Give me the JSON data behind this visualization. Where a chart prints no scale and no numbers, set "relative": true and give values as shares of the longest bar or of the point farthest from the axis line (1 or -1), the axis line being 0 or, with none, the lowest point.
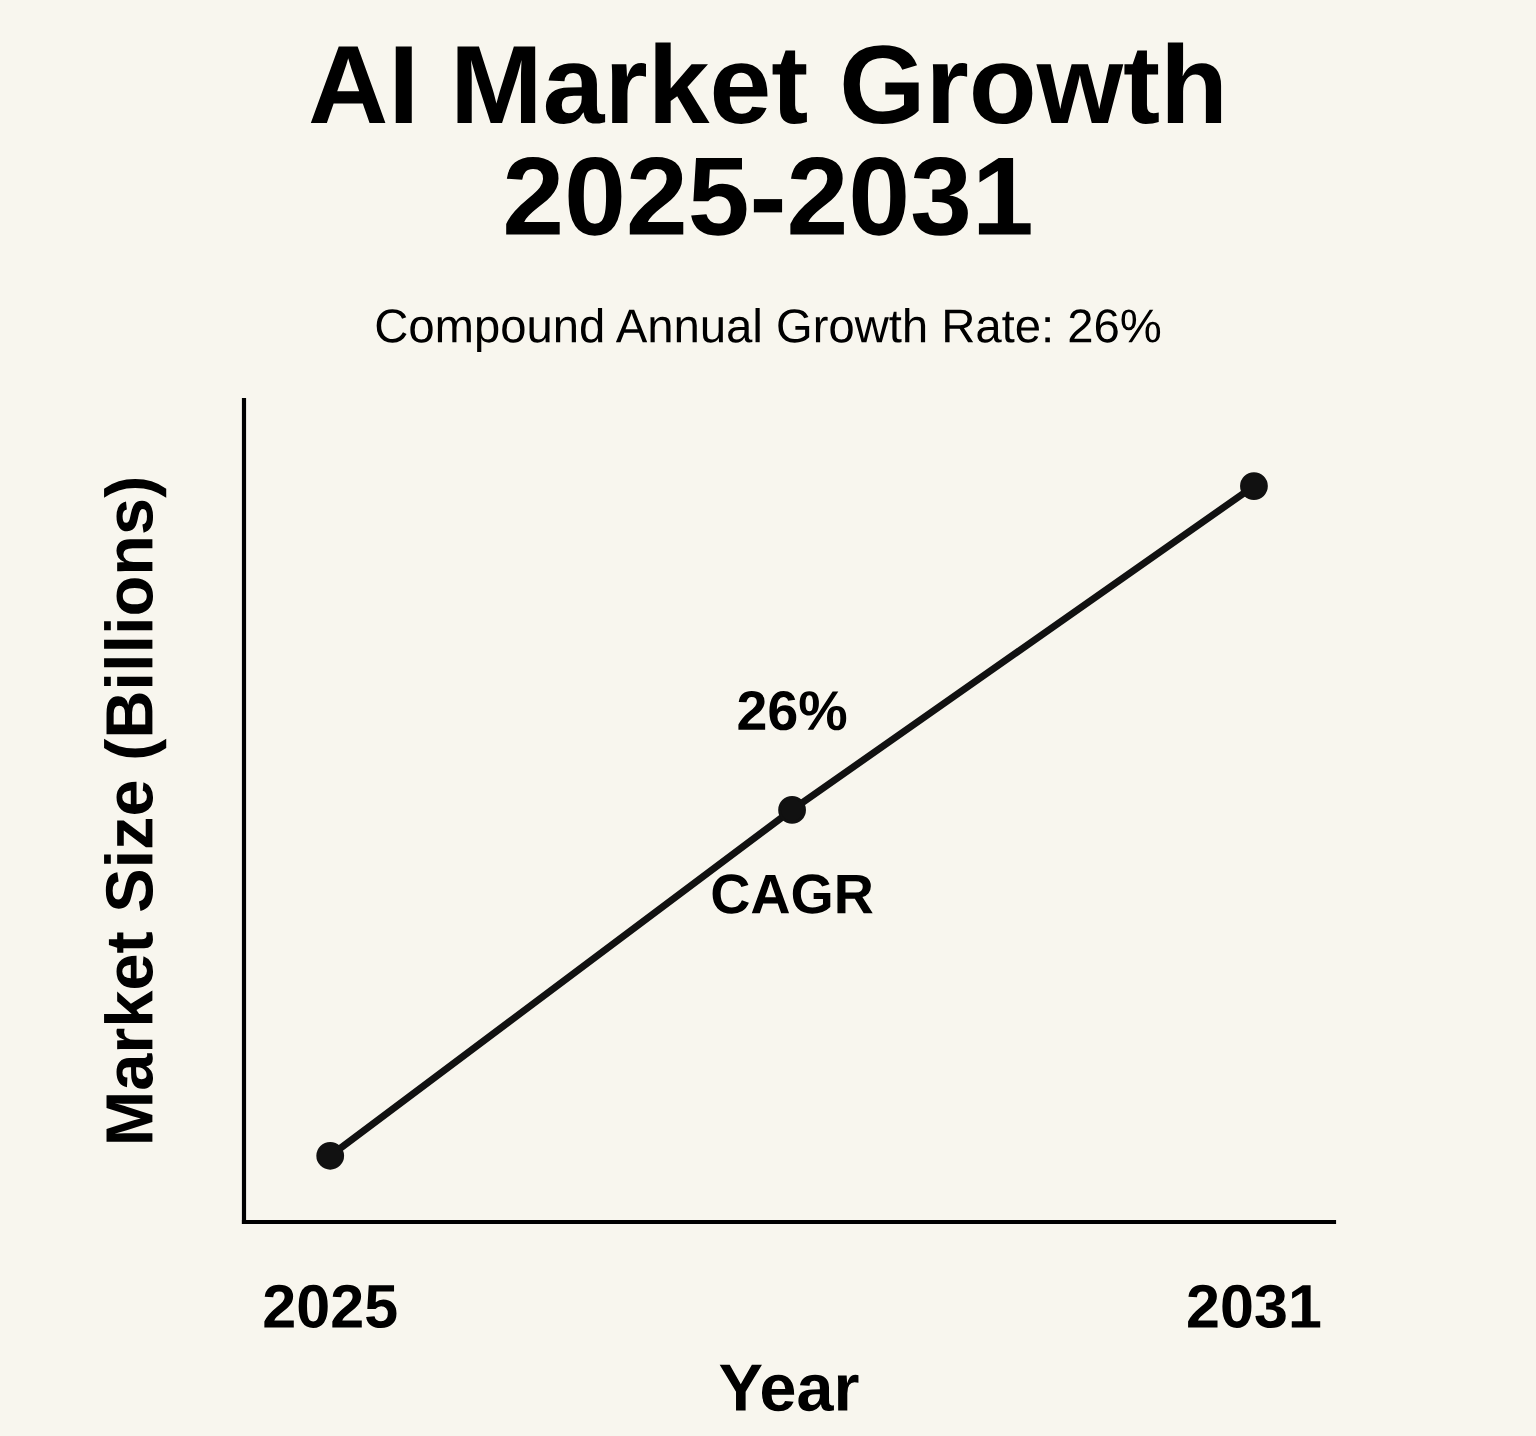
{
  "chart_data": {
    "type": "line",
    "title": "AI Market Growth\n2025-2031",
    "subtitle": "Compound Annual Growth Rate: 26%",
    "xlabel": "Year",
    "ylabel": "Market Size (Billions)",
    "relative": true,
    "x": [
      2025,
      2028,
      2031
    ],
    "series": [
      {
        "color": "#111111",
        "values": [
          0.09,
          0.56,
          1
        ]
      }
    ],
    "xlim": [
      2024.44,
      2031.52
    ],
    "xticks": [
      2025,
      2031
    ],
    "marker": "circle",
    "line_style": "solid",
    "grid": false,
    "legend": false,
    "annotations": [
      {
        "text": "26%",
        "x": 2028,
        "y": 0.56
      },
      {
        "text": "CAGR",
        "x": 2028,
        "y": 0.56
      }
    ]
  }
}
